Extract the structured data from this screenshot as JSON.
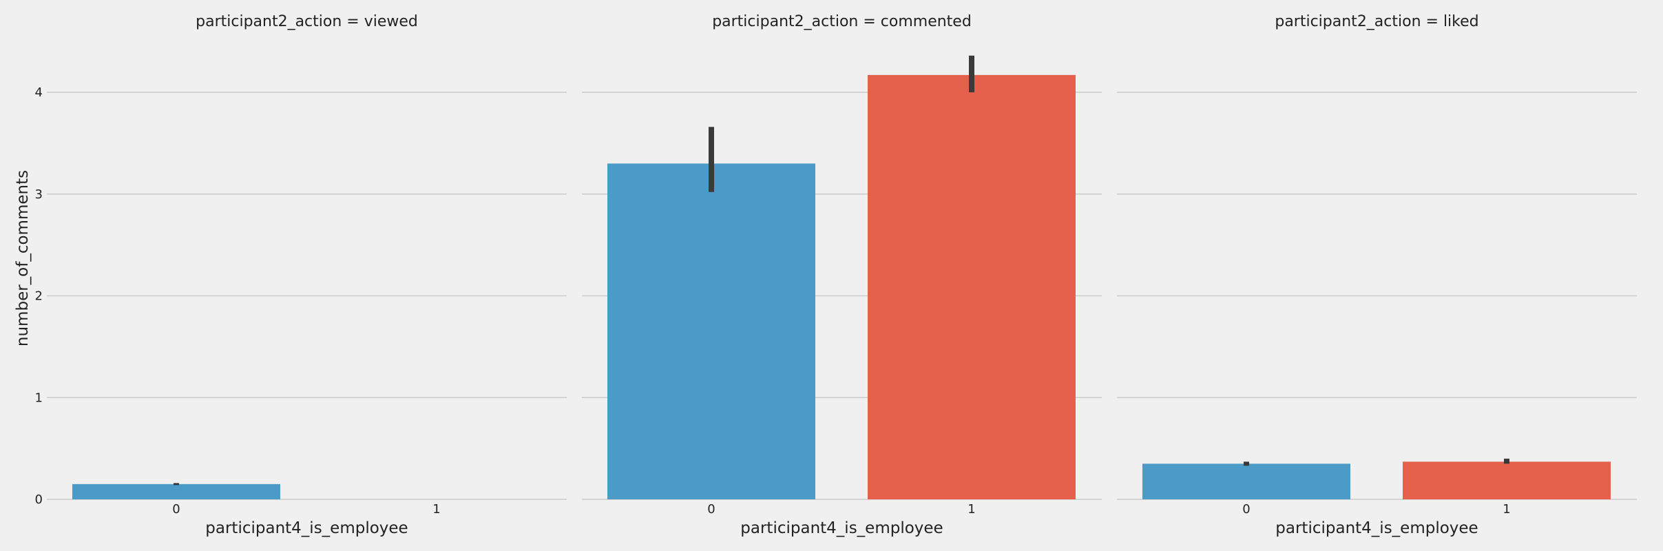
{
  "chart_data": {
    "type": "bar",
    "style": "fivethirtyeight",
    "ylabel": "number_of_comments",
    "xlabel": "participant4_is_employee",
    "categories": [
      "0",
      "1"
    ],
    "ylim": [
      0,
      4.5
    ],
    "yticks": [
      0,
      1,
      2,
      3,
      4
    ],
    "grid": "horizontal",
    "colors": [
      "#4a9bc7",
      "#e5604a"
    ],
    "error_color": "#3a3a3a",
    "panels": [
      {
        "title": "participant2_action = viewed",
        "values": [
          0.15,
          null
        ],
        "errors": [
          [
            0.14,
            0.16
          ],
          null
        ]
      },
      {
        "title": "participant2_action = commented",
        "values": [
          3.3,
          4.17
        ],
        "errors": [
          [
            3.02,
            3.66
          ],
          [
            4.0,
            4.36
          ]
        ]
      },
      {
        "title": "participant2_action = liked",
        "values": [
          0.35,
          0.37
        ],
        "errors": [
          [
            0.33,
            0.37
          ],
          [
            0.35,
            0.4
          ]
        ]
      }
    ]
  }
}
